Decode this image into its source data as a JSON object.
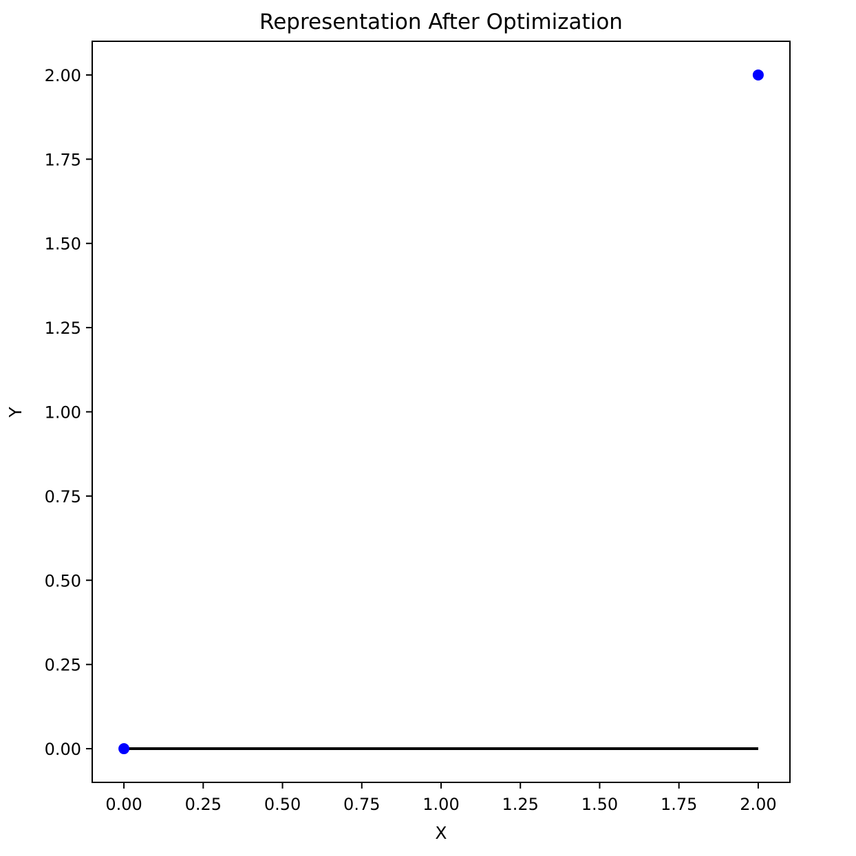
{
  "chart_data": {
    "type": "scatter",
    "title": "Representation After Optimization",
    "xlabel": "X",
    "ylabel": "Y",
    "xlim": [
      -0.1,
      2.1
    ],
    "ylim": [
      -0.1,
      2.1
    ],
    "x_ticks": [
      0.0,
      0.25,
      0.5,
      0.75,
      1.0,
      1.25,
      1.5,
      1.75,
      2.0
    ],
    "x_tick_labels": [
      "0.00",
      "0.25",
      "0.50",
      "0.75",
      "1.00",
      "1.25",
      "1.50",
      "1.75",
      "2.00"
    ],
    "y_ticks": [
      0.0,
      0.25,
      0.5,
      0.75,
      1.0,
      1.25,
      1.5,
      1.75,
      2.0
    ],
    "y_tick_labels": [
      "0.00",
      "0.25",
      "0.50",
      "0.75",
      "1.00",
      "1.25",
      "1.50",
      "1.75",
      "2.00"
    ],
    "grid": false,
    "legend": false,
    "series": [
      {
        "kind": "points",
        "color": "#0000ff",
        "points": [
          {
            "x": 0.0,
            "y": 0.0
          },
          {
            "x": 2.0,
            "y": 2.0
          }
        ]
      },
      {
        "kind": "line",
        "color": "#000000",
        "points": [
          {
            "x": 0.0,
            "y": 0.0
          },
          {
            "x": 2.0,
            "y": 0.0
          }
        ]
      }
    ]
  }
}
